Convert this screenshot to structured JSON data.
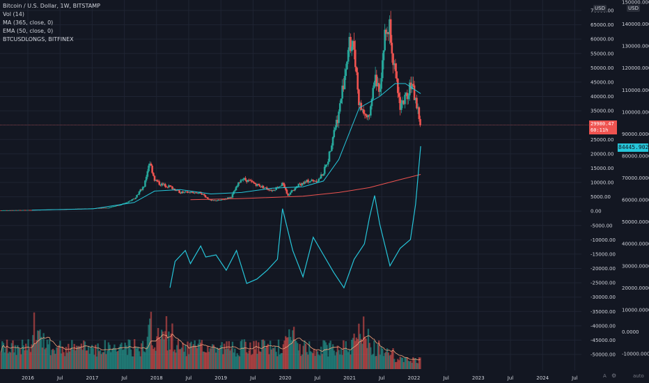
{
  "legend": {
    "symbol": "Bitcoin / U.S. Dollar, 1W, BITSTAMP",
    "vol": "Vol (14)",
    "ma": "MA (365, close, 0)",
    "ema": "EMA (50, close, 0)",
    "longs": "BTCUSDLONGS, BITFINEX"
  },
  "scale_labels": {
    "left": "USD",
    "right": "USD"
  },
  "price_tag": {
    "price": "29980.47",
    "countdown": "60:11h"
  },
  "longs_tag": "84445.9020",
  "bottom_controls": {
    "a": "A",
    "auto": "auto"
  },
  "colors": {
    "background": "#131722",
    "up": "#26a69a",
    "down": "#ef5350",
    "ma": "#ef5350",
    "ema": "#26c6da",
    "longs": "#26c6da",
    "vol_ma": "#f7a57d",
    "grid": "#1f2433",
    "text": "#d1d4dc"
  },
  "chart_data": {
    "type": "line",
    "x_labels": [
      "2016",
      "Jul",
      "2017",
      "Jul",
      "2018",
      "Jul",
      "2019",
      "Jul",
      "2020",
      "Jul",
      "2021",
      "Jul",
      "2022",
      "Jul",
      "2023",
      "Jul",
      "2024",
      "Jul"
    ],
    "price_axis": {
      "ticks": [
        "70000.00",
        "65000.00",
        "60000.00",
        "55000.00",
        "50000.00",
        "45000.00",
        "40000.00",
        "35000.00",
        "30000.00",
        "25000.00",
        "20000.00",
        "15000.00",
        "10000.00",
        "5000.00",
        "0.00",
        "-5000.00",
        "-10000.00",
        "-15000.00",
        "-20000.00",
        "-25000.00",
        "-30000.00",
        "-35000.00",
        "-40000.00",
        "-45000.00",
        "-50000.00"
      ],
      "ylim": [
        -50000,
        70000
      ]
    },
    "longs_axis": {
      "ticks": [
        "150000.0000",
        "140000.0000",
        "130000.0000",
        "120000.0000",
        "110000.0000",
        "100000.0000",
        "90000.0000",
        "80000.0000",
        "70000.0000",
        "60000.0000",
        "50000.0000",
        "40000.0000",
        "30000.0000",
        "20000.0000",
        "10000.0000",
        "0.0000",
        "-10000.0000"
      ],
      "ylim": [
        -10000,
        150000
      ]
    },
    "price_close": [
      {
        "x": "2015-07",
        "y": 280
      },
      {
        "x": "2016-01",
        "y": 400
      },
      {
        "x": "2016-07",
        "y": 650
      },
      {
        "x": "2017-01",
        "y": 950
      },
      {
        "x": "2017-04",
        "y": 1200
      },
      {
        "x": "2017-07",
        "y": 2600
      },
      {
        "x": "2017-09",
        "y": 4300
      },
      {
        "x": "2017-11",
        "y": 9000
      },
      {
        "x": "2017-12",
        "y": 17500
      },
      {
        "x": "2018-01",
        "y": 11000
      },
      {
        "x": "2018-02",
        "y": 9500
      },
      {
        "x": "2018-04",
        "y": 8500
      },
      {
        "x": "2018-06",
        "y": 6500
      },
      {
        "x": "2018-08",
        "y": 6500
      },
      {
        "x": "2018-10",
        "y": 6400
      },
      {
        "x": "2018-12",
        "y": 3600
      },
      {
        "x": "2019-02",
        "y": 3800
      },
      {
        "x": "2019-04",
        "y": 5000
      },
      {
        "x": "2019-06",
        "y": 11500
      },
      {
        "x": "2019-08",
        "y": 10000
      },
      {
        "x": "2019-10",
        "y": 8500
      },
      {
        "x": "2019-12",
        "y": 7200
      },
      {
        "x": "2020-02",
        "y": 9500
      },
      {
        "x": "2020-03",
        "y": 5500
      },
      {
        "x": "2020-05",
        "y": 9000
      },
      {
        "x": "2020-07",
        "y": 10500
      },
      {
        "x": "2020-09",
        "y": 10800
      },
      {
        "x": "2020-10",
        "y": 13500
      },
      {
        "x": "2020-11",
        "y": 18500
      },
      {
        "x": "2020-12",
        "y": 28000
      },
      {
        "x": "2021-01",
        "y": 34000
      },
      {
        "x": "2021-02",
        "y": 46000
      },
      {
        "x": "2021-03",
        "y": 58000
      },
      {
        "x": "2021-04",
        "y": 57000
      },
      {
        "x": "2021-05",
        "y": 37000
      },
      {
        "x": "2021-06",
        "y": 34000
      },
      {
        "x": "2021-07",
        "y": 31500
      },
      {
        "x": "2021-08",
        "y": 47000
      },
      {
        "x": "2021-09",
        "y": 43000
      },
      {
        "x": "2021-10",
        "y": 61000
      },
      {
        "x": "2021-11",
        "y": 65000
      },
      {
        "x": "2021-12",
        "y": 47000
      },
      {
        "x": "2022-01",
        "y": 37000
      },
      {
        "x": "2022-02",
        "y": 39000
      },
      {
        "x": "2022-03",
        "y": 45000
      },
      {
        "x": "2022-04",
        "y": 39000
      },
      {
        "x": "2022-05",
        "y": 29980
      }
    ],
    "ema_50": [
      {
        "x": "2016-01",
        "y": 350
      },
      {
        "x": "2017-01",
        "y": 800
      },
      {
        "x": "2017-09",
        "y": 3000
      },
      {
        "x": "2018-01",
        "y": 7000
      },
      {
        "x": "2018-06",
        "y": 7500
      },
      {
        "x": "2018-12",
        "y": 6000
      },
      {
        "x": "2019-06",
        "y": 6500
      },
      {
        "x": "2019-12",
        "y": 8000
      },
      {
        "x": "2020-06",
        "y": 8500
      },
      {
        "x": "2020-10",
        "y": 10500
      },
      {
        "x": "2021-01",
        "y": 18000
      },
      {
        "x": "2021-05",
        "y": 36000
      },
      {
        "x": "2021-09",
        "y": 40000
      },
      {
        "x": "2021-12",
        "y": 44500
      },
      {
        "x": "2022-02",
        "y": 44500
      },
      {
        "x": "2022-05",
        "y": 41000
      }
    ],
    "ma_365": [
      {
        "x": "2018-08",
        "y": 4000
      },
      {
        "x": "2019-06",
        "y": 4400
      },
      {
        "x": "2020-06",
        "y": 5200
      },
      {
        "x": "2021-01",
        "y": 6500
      },
      {
        "x": "2021-07",
        "y": 8200
      },
      {
        "x": "2022-01",
        "y": 11000
      },
      {
        "x": "2022-05",
        "y": 12800
      }
    ],
    "btcusdlongs": [
      {
        "x": "2018-04",
        "y": 20000
      },
      {
        "x": "2018-05",
        "y": 32000
      },
      {
        "x": "2018-07",
        "y": 37000
      },
      {
        "x": "2018-08",
        "y": 31000
      },
      {
        "x": "2018-10",
        "y": 39000
      },
      {
        "x": "2018-11",
        "y": 34000
      },
      {
        "x": "2019-01",
        "y": 35000
      },
      {
        "x": "2019-03",
        "y": 28000
      },
      {
        "x": "2019-05",
        "y": 37000
      },
      {
        "x": "2019-07",
        "y": 22000
      },
      {
        "x": "2019-09",
        "y": 24000
      },
      {
        "x": "2019-11",
        "y": 28000
      },
      {
        "x": "2020-01",
        "y": 33000
      },
      {
        "x": "2020-02",
        "y": 56000
      },
      {
        "x": "2020-04",
        "y": 37000
      },
      {
        "x": "2020-06",
        "y": 25000
      },
      {
        "x": "2020-08",
        "y": 43000
      },
      {
        "x": "2020-10",
        "y": 35000
      },
      {
        "x": "2020-12",
        "y": 27000
      },
      {
        "x": "2021-02",
        "y": 20000
      },
      {
        "x": "2021-04",
        "y": 33000
      },
      {
        "x": "2021-06",
        "y": 40000
      },
      {
        "x": "2021-07",
        "y": 52000
      },
      {
        "x": "2021-08",
        "y": 62000
      },
      {
        "x": "2021-09",
        "y": 49000
      },
      {
        "x": "2021-11",
        "y": 30000
      },
      {
        "x": "2022-01",
        "y": 38000
      },
      {
        "x": "2022-03",
        "y": 42000
      },
      {
        "x": "2022-04",
        "y": 58000
      },
      {
        "x": "2022-05",
        "y": 84445.902
      }
    ]
  }
}
